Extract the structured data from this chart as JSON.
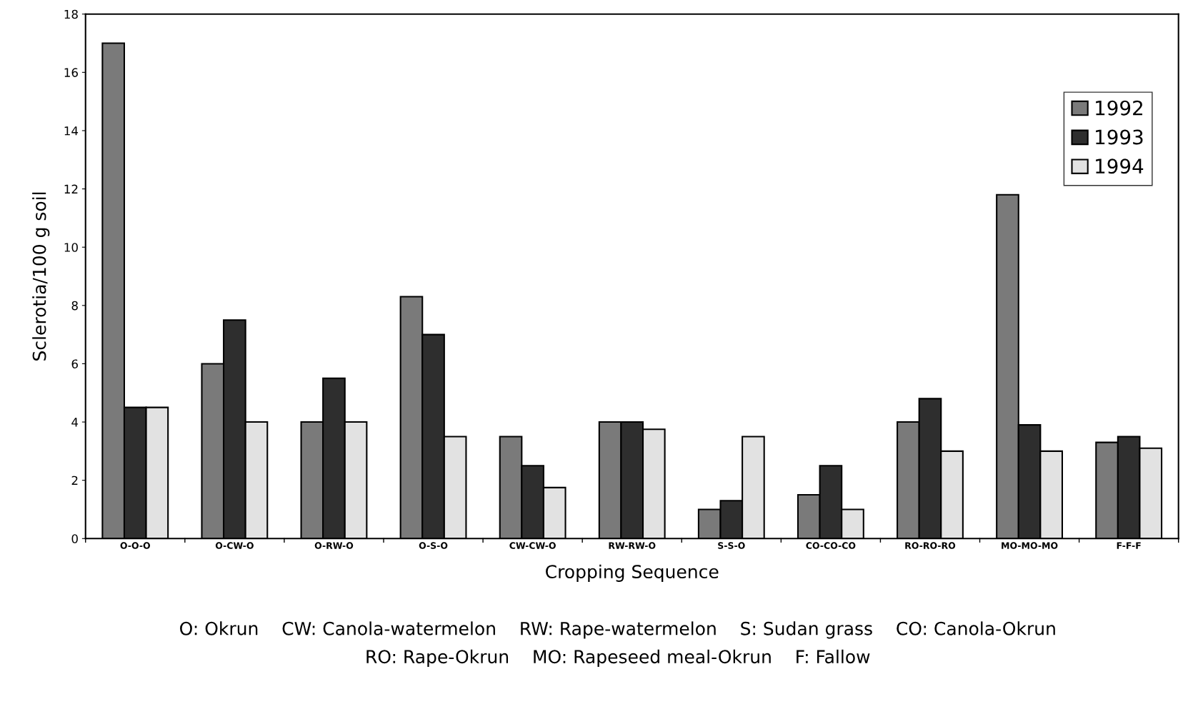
{
  "chart_data": {
    "type": "bar",
    "xlabel": "Cropping Sequence",
    "ylabel": "Sclerotia/100 g soil",
    "categories": [
      "O-O-O",
      "O-CW-O",
      "O-RW-O",
      "O-S-O",
      "CW-CW-O",
      "RW-RW-O",
      "S-S-O",
      "CO-CO-CO",
      "RO-RO-RO",
      "MO-MO-MO",
      "F-F-F"
    ],
    "series": [
      {
        "name": "1992",
        "color": "#7a7a7a",
        "values": [
          17,
          6,
          4,
          8.3,
          3.5,
          4,
          1,
          1.5,
          4,
          11.8,
          3.3
        ]
      },
      {
        "name": "1993",
        "color": "#2e2e2e",
        "values": [
          4.5,
          7.5,
          5.5,
          7,
          2.5,
          4,
          1.3,
          2.5,
          4.8,
          3.9,
          3.5
        ]
      },
      {
        "name": "1994",
        "color": "#e2e2e2",
        "values": [
          4.5,
          4,
          4,
          3.5,
          1.75,
          3.75,
          3.5,
          1,
          3,
          3,
          3.1
        ]
      }
    ],
    "ylim": [
      0,
      18
    ],
    "yticks": [
      0,
      2,
      4,
      6,
      8,
      10,
      12,
      14,
      16,
      18
    ],
    "grid": false,
    "legend": "top right",
    "annotations": [
      "O: Okrun    CW: Canola-watermelon    RW: Rape-watermelon    S: Sudan grass    CO: Canola-Okrun",
      "RO: Rape-Okrun    MO: Rapeseed meal-Okrun    F: Fallow"
    ]
  }
}
